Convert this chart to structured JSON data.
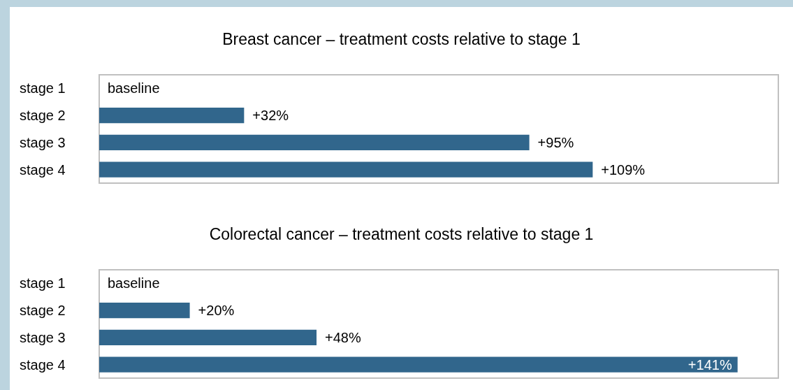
{
  "chart_data": [
    {
      "type": "bar",
      "orientation": "horizontal",
      "title": "Breast cancer – treatment costs relative to stage 1",
      "categories": [
        "stage 1",
        "stage 2",
        "stage 3",
        "stage 4"
      ],
      "values": [
        0,
        32,
        95,
        109
      ],
      "value_labels": [
        "baseline",
        "+32%",
        "+95%",
        "+109%"
      ],
      "color": "#31668c",
      "xlim": [
        0,
        150
      ],
      "tick_labels": "y"
    },
    {
      "type": "bar",
      "orientation": "horizontal",
      "title": "Colorectal cancer – treatment costs relative to stage 1",
      "categories": [
        "stage 1",
        "stage 2",
        "stage 3",
        "stage 4"
      ],
      "values": [
        0,
        20,
        48,
        141
      ],
      "value_labels": [
        "baseline",
        "+20%",
        "+48%",
        "+141%"
      ],
      "color": "#31668c",
      "xlim": [
        0,
        150
      ],
      "tick_labels": "y"
    }
  ]
}
